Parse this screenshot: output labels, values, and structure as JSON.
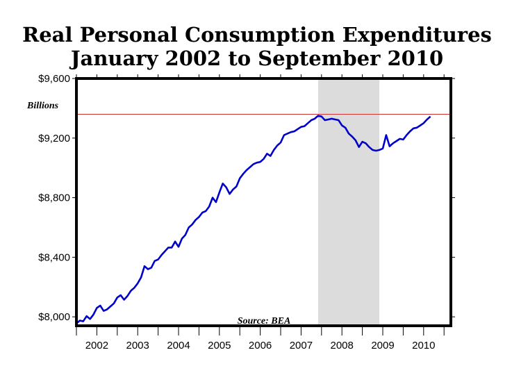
{
  "chart_data": {
    "type": "line",
    "title": "Real Personal Consumption Expenditures",
    "subtitle": "January 2002 to September 2010",
    "ylabel": "Billions",
    "source": "Source: BEA",
    "ylim": [
      7940,
      9600
    ],
    "yticks": [
      8000,
      8400,
      8800,
      9200,
      9600
    ],
    "ytick_labels": [
      "$8,000",
      "$8,400",
      "$8,800",
      "$9,200",
      "$9,600"
    ],
    "xlim": [
      "2002-01",
      "2011-03"
    ],
    "xtick_labels": [
      "2002",
      "2003",
      "2004",
      "2005",
      "2006",
      "2007",
      "2008",
      "2009",
      "2010"
    ],
    "grid": false,
    "legend": "none",
    "colors": {
      "series": "#0000cc",
      "reference_line": "#cc3333",
      "recession": "#dcdcdc"
    },
    "reference_line": {
      "y": 9360
    },
    "shaded_region": {
      "x_start": "2007-12",
      "x_end": "2009-06"
    },
    "series": [
      {
        "x": [
          "2002-01",
          "2002-02",
          "2002-03",
          "2002-04",
          "2002-05",
          "2002-06",
          "2002-07",
          "2002-08",
          "2002-09",
          "2002-10",
          "2002-11",
          "2002-12",
          "2003-01",
          "2003-02",
          "2003-03",
          "2003-04",
          "2003-05",
          "2003-06",
          "2003-07",
          "2003-08",
          "2003-09",
          "2003-10",
          "2003-11",
          "2003-12",
          "2004-01",
          "2004-02",
          "2004-03",
          "2004-04",
          "2004-05",
          "2004-06",
          "2004-07",
          "2004-08",
          "2004-09",
          "2004-10",
          "2004-11",
          "2004-12",
          "2005-01",
          "2005-02",
          "2005-03",
          "2005-04",
          "2005-05",
          "2005-06",
          "2005-07",
          "2005-08",
          "2005-09",
          "2005-10",
          "2005-11",
          "2005-12",
          "2006-01",
          "2006-02",
          "2006-03",
          "2006-04",
          "2006-05",
          "2006-06",
          "2006-07",
          "2006-08",
          "2006-09",
          "2006-10",
          "2006-11",
          "2006-12",
          "2007-01",
          "2007-02",
          "2007-03",
          "2007-04",
          "2007-05",
          "2007-06",
          "2007-07",
          "2007-08",
          "2007-09",
          "2007-10",
          "2007-11",
          "2007-12",
          "2008-01",
          "2008-02",
          "2008-03",
          "2008-04",
          "2008-05",
          "2008-06",
          "2008-07",
          "2008-08",
          "2008-09",
          "2008-10",
          "2008-11",
          "2008-12",
          "2009-01",
          "2009-02",
          "2009-03",
          "2009-04",
          "2009-05",
          "2009-06",
          "2009-07",
          "2009-08",
          "2009-09",
          "2009-10",
          "2009-11",
          "2009-12",
          "2010-01",
          "2010-02",
          "2010-03",
          "2010-04",
          "2010-05",
          "2010-06",
          "2010-07",
          "2010-08",
          "2010-09"
        ],
        "values": [
          7955,
          7975,
          7970,
          8005,
          7985,
          8015,
          8060,
          8075,
          8040,
          8050,
          8070,
          8090,
          8130,
          8145,
          8115,
          8140,
          8175,
          8195,
          8225,
          8265,
          8340,
          8320,
          8330,
          8375,
          8385,
          8415,
          8440,
          8465,
          8465,
          8505,
          8470,
          8525,
          8550,
          8600,
          8620,
          8650,
          8670,
          8700,
          8710,
          8740,
          8800,
          8770,
          8835,
          8895,
          8870,
          8825,
          8855,
          8875,
          8930,
          8960,
          8985,
          9005,
          9025,
          9035,
          9040,
          9060,
          9095,
          9080,
          9120,
          9150,
          9170,
          9220,
          9230,
          9240,
          9245,
          9260,
          9275,
          9280,
          9300,
          9320,
          9330,
          9350,
          9345,
          9320,
          9325,
          9330,
          9325,
          9320,
          9285,
          9270,
          9230,
          9210,
          9185,
          9140,
          9175,
          9165,
          9140,
          9120,
          9115,
          9120,
          9130,
          9220,
          9145,
          9165,
          9180,
          9195,
          9190,
          9220,
          9245,
          9265,
          9270,
          9285,
          9300,
          9325,
          9345
        ]
      }
    ]
  }
}
